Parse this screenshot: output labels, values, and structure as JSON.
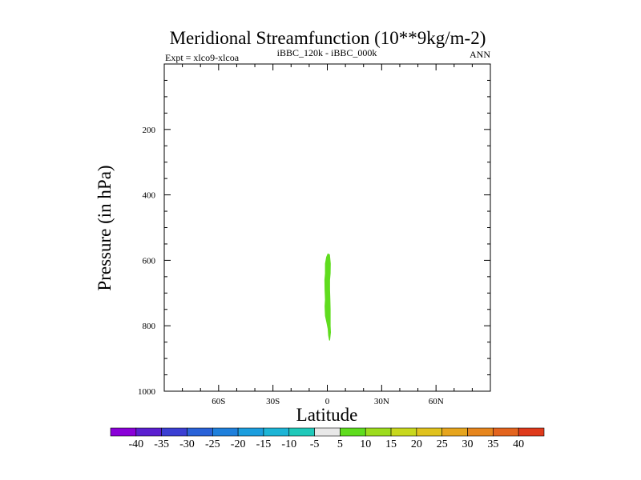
{
  "chart_data": {
    "type": "contour",
    "title": "Meridional Streamfunction (10**9kg/m-2)",
    "left_string": "Expt = xlco9-xlcoa",
    "center_string": "iBBC_120k - iBBC_000k",
    "right_string": "ANN",
    "xlabel": "Latitude",
    "ylabel": "Pressure (in hPa)",
    "xlim": [
      -90,
      90
    ],
    "ylim": [
      1000,
      0
    ],
    "x_ticks": [
      {
        "value": -60,
        "label": "60S"
      },
      {
        "value": -30,
        "label": "30S"
      },
      {
        "value": 0,
        "label": "0"
      },
      {
        "value": 30,
        "label": "30N"
      },
      {
        "value": 60,
        "label": "60N"
      }
    ],
    "y_ticks": [
      {
        "value": 200,
        "label": "200"
      },
      {
        "value": 400,
        "label": "400"
      },
      {
        "value": 600,
        "label": "600"
      },
      {
        "value": 800,
        "label": "800"
      },
      {
        "value": 1000,
        "label": "1000"
      }
    ],
    "filled_regions": [
      {
        "level_range": [
          5,
          10
        ],
        "color": "#5fdc1e",
        "outline": [
          [
            0.2,
            579
          ],
          [
            1.4,
            582
          ],
          [
            1.9,
            610
          ],
          [
            1.8,
            640
          ],
          [
            1.5,
            660
          ],
          [
            1.5,
            690
          ],
          [
            1.7,
            720
          ],
          [
            1.8,
            750
          ],
          [
            1.8,
            780
          ],
          [
            1.8,
            800
          ],
          [
            2.0,
            820
          ],
          [
            1.5,
            845
          ],
          [
            1.0,
            845
          ],
          [
            0.5,
            830
          ],
          [
            0.2,
            810
          ],
          [
            -0.5,
            790
          ],
          [
            -1.3,
            770
          ],
          [
            -1.5,
            740
          ],
          [
            -1.3,
            720
          ],
          [
            -1.5,
            690
          ],
          [
            -1.6,
            660
          ],
          [
            -1.3,
            640
          ],
          [
            -1.3,
            610
          ],
          [
            -0.6,
            590
          ]
        ]
      }
    ],
    "colorbar": {
      "labels": [
        "-40",
        "-35",
        "-30",
        "-25",
        "-20",
        "-15",
        "-10",
        "-5",
        "5",
        "10",
        "15",
        "20",
        "25",
        "30",
        "35",
        "40"
      ],
      "colors": [
        "#8a00d8",
        "#5b1fd0",
        "#3b3fd3",
        "#2a62d8",
        "#1f80dc",
        "#1c9ede",
        "#1db5d6",
        "#20c9ba",
        "#e8e8e8",
        "#5fdc1e",
        "#9ddc1e",
        "#c8d81e",
        "#e0c21e",
        "#e6a51e",
        "#e6861e",
        "#e3641e",
        "#df3a1c"
      ]
    }
  }
}
